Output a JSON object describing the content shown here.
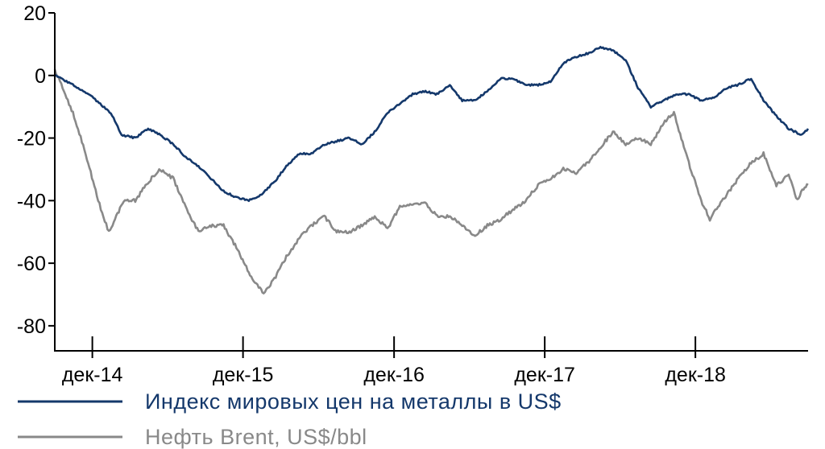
{
  "chart_data": {
    "type": "line",
    "title": "",
    "xlabel": "",
    "ylabel": "",
    "ylim": [
      -88,
      20
    ],
    "y_ticks": [
      20,
      0,
      -20,
      -40,
      -60,
      -80
    ],
    "y_tick_labels": [
      "20",
      "0",
      "-20",
      "-40",
      "-60",
      "-80"
    ],
    "x_range": [
      "2014-09-01",
      "2019-08-31"
    ],
    "x_ticks": [
      "2014-12-01",
      "2015-12-01",
      "2016-12-01",
      "2017-12-01",
      "2018-12-01"
    ],
    "x_tick_labels": [
      "дек-14",
      "дек-15",
      "дек-16",
      "дек-17",
      "дек-18"
    ],
    "grid": false,
    "legend_position": "bottom-left",
    "series": [
      {
        "name": "Индекс мировых цен на металлы в US$",
        "color": "#14386b",
        "points": [
          [
            "2014-09-01",
            0
          ],
          [
            "2014-10-15",
            -3
          ],
          [
            "2014-12-01",
            -7
          ],
          [
            "2015-01-15",
            -12
          ],
          [
            "2015-02-10",
            -19
          ],
          [
            "2015-03-15",
            -20
          ],
          [
            "2015-04-15",
            -17
          ],
          [
            "2015-05-15",
            -19
          ],
          [
            "2015-06-15",
            -22
          ],
          [
            "2015-07-15",
            -26
          ],
          [
            "2015-08-15",
            -29
          ],
          [
            "2015-09-15",
            -33
          ],
          [
            "2015-10-15",
            -37
          ],
          [
            "2015-11-15",
            -39
          ],
          [
            "2015-12-15",
            -40
          ],
          [
            "2016-01-15",
            -38
          ],
          [
            "2016-02-15",
            -34
          ],
          [
            "2016-03-15",
            -29
          ],
          [
            "2016-04-15",
            -25
          ],
          [
            "2016-05-15",
            -25
          ],
          [
            "2016-06-15",
            -22
          ],
          [
            "2016-07-15",
            -21
          ],
          [
            "2016-08-15",
            -20
          ],
          [
            "2016-09-15",
            -22
          ],
          [
            "2016-10-15",
            -18
          ],
          [
            "2016-11-15",
            -12
          ],
          [
            "2016-12-15",
            -9
          ],
          [
            "2017-01-15",
            -6
          ],
          [
            "2017-02-15",
            -5
          ],
          [
            "2017-03-15",
            -6
          ],
          [
            "2017-04-15",
            -3
          ],
          [
            "2017-05-15",
            -8
          ],
          [
            "2017-06-15",
            -8
          ],
          [
            "2017-07-15",
            -5
          ],
          [
            "2017-08-15",
            -1
          ],
          [
            "2017-09-15",
            -1
          ],
          [
            "2017-10-15",
            -3
          ],
          [
            "2017-11-15",
            -3
          ],
          [
            "2017-12-15",
            -2
          ],
          [
            "2018-01-15",
            4
          ],
          [
            "2018-02-15",
            6
          ],
          [
            "2018-03-15",
            7
          ],
          [
            "2018-04-15",
            9
          ],
          [
            "2018-05-15",
            8
          ],
          [
            "2018-06-15",
            5
          ],
          [
            "2018-07-15",
            -4
          ],
          [
            "2018-08-15",
            -10
          ],
          [
            "2018-09-15",
            -8
          ],
          [
            "2018-10-15",
            -6
          ],
          [
            "2018-11-15",
            -6
          ],
          [
            "2018-12-15",
            -8
          ],
          [
            "2019-01-15",
            -7
          ],
          [
            "2019-02-15",
            -4
          ],
          [
            "2019-03-15",
            -3
          ],
          [
            "2019-04-15",
            -1
          ],
          [
            "2019-05-15",
            -8
          ],
          [
            "2019-06-15",
            -13
          ],
          [
            "2019-07-15",
            -17
          ],
          [
            "2019-08-15",
            -19
          ],
          [
            "2019-08-31",
            -17
          ]
        ]
      },
      {
        "name": "Нефть Brent, US$/bbl",
        "color": "#898989",
        "points": [
          [
            "2014-09-01",
            2
          ],
          [
            "2014-10-15",
            -12
          ],
          [
            "2014-11-15",
            -25
          ],
          [
            "2014-12-15",
            -40
          ],
          [
            "2015-01-10",
            -50
          ],
          [
            "2015-02-15",
            -40
          ],
          [
            "2015-03-15",
            -40
          ],
          [
            "2015-04-15",
            -34
          ],
          [
            "2015-05-15",
            -30
          ],
          [
            "2015-06-15",
            -33
          ],
          [
            "2015-07-15",
            -42
          ],
          [
            "2015-08-15",
            -50
          ],
          [
            "2015-09-15",
            -48
          ],
          [
            "2015-10-15",
            -48
          ],
          [
            "2015-11-15",
            -55
          ],
          [
            "2015-12-15",
            -63
          ],
          [
            "2016-01-20",
            -70
          ],
          [
            "2016-02-15",
            -65
          ],
          [
            "2016-03-15",
            -58
          ],
          [
            "2016-04-15",
            -52
          ],
          [
            "2016-05-15",
            -48
          ],
          [
            "2016-06-15",
            -45
          ],
          [
            "2016-07-15",
            -50
          ],
          [
            "2016-08-15",
            -50
          ],
          [
            "2016-09-15",
            -48
          ],
          [
            "2016-10-15",
            -45
          ],
          [
            "2016-11-15",
            -49
          ],
          [
            "2016-12-15",
            -42
          ],
          [
            "2017-01-15",
            -41
          ],
          [
            "2017-02-15",
            -41
          ],
          [
            "2017-03-15",
            -45
          ],
          [
            "2017-04-15",
            -45
          ],
          [
            "2017-05-15",
            -48
          ],
          [
            "2017-06-15",
            -51
          ],
          [
            "2017-07-15",
            -48
          ],
          [
            "2017-08-15",
            -46
          ],
          [
            "2017-09-15",
            -43
          ],
          [
            "2017-10-15",
            -40
          ],
          [
            "2017-11-15",
            -35
          ],
          [
            "2017-12-15",
            -33
          ],
          [
            "2018-01-15",
            -30
          ],
          [
            "2018-02-15",
            -31
          ],
          [
            "2018-03-15",
            -28
          ],
          [
            "2018-04-15",
            -23
          ],
          [
            "2018-05-15",
            -18
          ],
          [
            "2018-06-15",
            -22
          ],
          [
            "2018-07-15",
            -20
          ],
          [
            "2018-08-15",
            -22
          ],
          [
            "2018-09-15",
            -15
          ],
          [
            "2018-10-10",
            -12
          ],
          [
            "2018-11-15",
            -28
          ],
          [
            "2018-12-15",
            -40
          ],
          [
            "2019-01-05",
            -46
          ],
          [
            "2019-01-25",
            -42
          ],
          [
            "2019-02-15",
            -38
          ],
          [
            "2019-03-15",
            -33
          ],
          [
            "2019-04-15",
            -28
          ],
          [
            "2019-05-15",
            -25
          ],
          [
            "2019-06-15",
            -35
          ],
          [
            "2019-07-15",
            -32
          ],
          [
            "2019-08-05",
            -40
          ],
          [
            "2019-08-20",
            -36
          ],
          [
            "2019-08-31",
            -35
          ]
        ]
      }
    ]
  }
}
